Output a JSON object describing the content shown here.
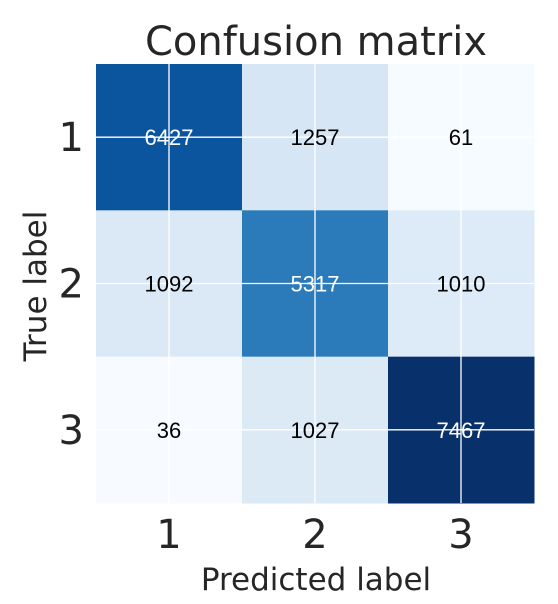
{
  "chart_data": {
    "type": "heatmap",
    "title": "Confusion matrix",
    "xlabel": "Predicted label",
    "ylabel": "True label",
    "x_categories": [
      "1",
      "2",
      "3"
    ],
    "y_categories": [
      "1",
      "2",
      "3"
    ],
    "values": [
      [
        6427,
        1257,
        61
      ],
      [
        1092,
        5317,
        1010
      ],
      [
        36,
        1027,
        7467
      ]
    ],
    "colormap": "Blues",
    "grid": true,
    "colors": {
      "low": "#f7fbff",
      "high": "#08306b",
      "text_dark": "#000000",
      "text_light": "#ffffff",
      "grid": "#ffffff"
    }
  }
}
